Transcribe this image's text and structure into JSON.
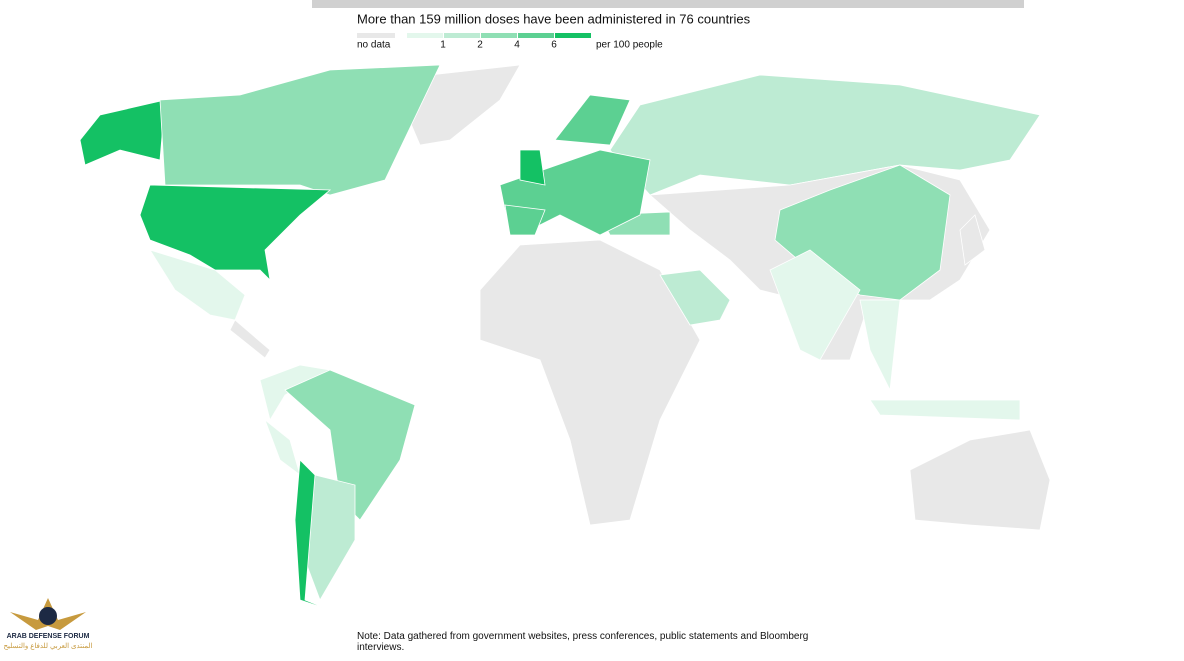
{
  "header": {
    "title": "More than 159 million doses have been administered in 76 countries"
  },
  "legend": {
    "no_data": "no data",
    "no_data_color": "#e8e8e8",
    "ticks": [
      1,
      2,
      4,
      6
    ],
    "unit": "per 100 people",
    "colors": [
      "#e3f7ec",
      "#bdebd3",
      "#8fdfb4",
      "#5cd092",
      "#14c164"
    ]
  },
  "note": "Note: Data gathered from government websites, press conferences, public statements and Bloomberg interviews.",
  "watermark": {
    "name": "ARAB DEFENSE FORUM",
    "arabic": "المنتدى العربي للدفاع والتسليح"
  }
}
